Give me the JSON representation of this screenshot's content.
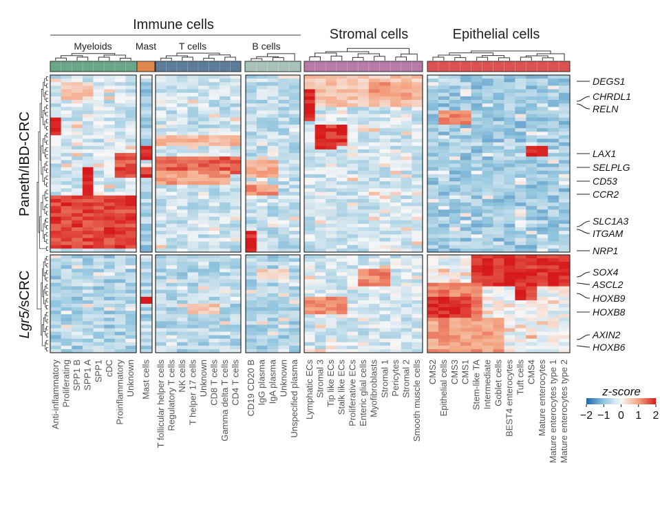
{
  "chart_data": {
    "type": "heatmap",
    "title": "",
    "groups": [
      {
        "name": "Immune cells",
        "sublabels": [
          "Myeloids",
          "Mast",
          "T cells",
          "B cells"
        ]
      },
      {
        "name": "Stromal cells"
      },
      {
        "name": "Epithelial cells"
      }
    ],
    "panels": [
      {
        "key": "myeloid",
        "color": "#6aa688",
        "columns": [
          "Anti-inflammatory",
          "Proliferating",
          "SPP1 B",
          "SPP1 A",
          "SPP1",
          "cDC",
          "Proinflammatory",
          "Unknown"
        ]
      },
      {
        "key": "mast",
        "color": "#e0874e",
        "columns": [
          "Mast cells"
        ]
      },
      {
        "key": "tcell",
        "color": "#5d7d99",
        "columns": [
          "T follicular helper cells",
          "Regulatory T cells",
          "NK cells",
          "T helper 17 cells",
          "Unknown",
          "CD8 T cells",
          "Gamma delta T cells",
          "CD4 T cells"
        ]
      },
      {
        "key": "bcell",
        "color": "#a8c2bb",
        "columns": [
          "CD19 CD20  B",
          "IgG plasma",
          "IgA plasma",
          "Unknown",
          "Unspecified plasma"
        ]
      },
      {
        "key": "stromal",
        "color": "#b87ba8",
        "columns": [
          "Lymphatic ECs",
          "Stromal 3",
          "Tip like ECs",
          "Stalk like ECs",
          "Proliferative ECs",
          "Enteric glial cells",
          "Myofibroblasts",
          "Stromal 1",
          "Pericytes",
          "Stromal 2",
          "Smooth muscle cells"
        ]
      },
      {
        "key": "epithelial",
        "color": "#db5252",
        "columns": [
          "CMS2",
          "Epithelial cells",
          "CMS3",
          "CMS1",
          "Stem-like TA",
          "Intermediate",
          "Goblet cells",
          "BEST4 enterocytes",
          "Tuft cells",
          "CMS4",
          "Mature enterocytes",
          "Mature enterocytes type 1",
          "Mature enterocytes type 2"
        ]
      }
    ],
    "row_blocks": [
      {
        "label": "Paneth/IBD-CRC",
        "italic_prefix": "",
        "rows": 50
      },
      {
        "label": "sCRC",
        "italic_prefix": "Lgr5/",
        "rows": 28
      }
    ],
    "gene_labels": [
      "DEGS1",
      "CHRDL1",
      "RELN",
      "LAX1",
      "SELPLG",
      "CD53",
      "CCR2",
      "SLC1A3",
      "ITGAM",
      "NRP1",
      "SOX4",
      "ASCL2",
      "HOXB9",
      "HOXB8",
      "AXIN2",
      "HOXB6"
    ],
    "colorbar": {
      "title": "z-score",
      "ticks": [
        "−2",
        "−1",
        "0",
        "1",
        "2"
      ],
      "range": [
        -2,
        2
      ],
      "colors": [
        "#2166ac",
        "#92c5de",
        "#f7f7f7",
        "#f4a582",
        "#d6191b"
      ]
    }
  }
}
